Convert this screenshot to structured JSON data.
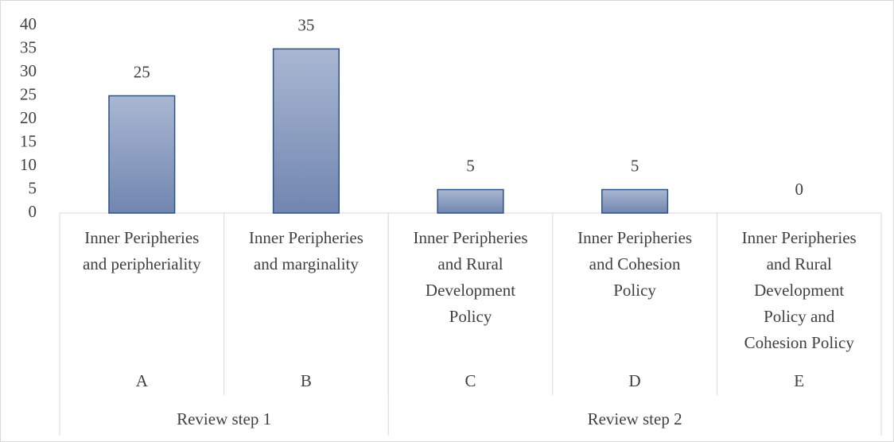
{
  "chart_data": {
    "type": "bar",
    "categories": [
      [
        "Inner Peripheries",
        "and peripheriality"
      ],
      [
        "Inner Peripheries",
        "and marginality"
      ],
      [
        "Inner Peripheries",
        "and Rural",
        "Development",
        "Policy"
      ],
      [
        "Inner Peripheries",
        "and Cohesion",
        "Policy"
      ],
      [
        "Inner Peripheries",
        "and Rural",
        "Development",
        "Policy and",
        "Cohesion Policy"
      ]
    ],
    "subcategories": [
      "A",
      "B",
      "C",
      "D",
      "E"
    ],
    "groups": [
      {
        "name": "Review step 1",
        "count": 2
      },
      {
        "name": "Review step 2",
        "count": 3
      }
    ],
    "values": [
      25,
      35,
      5,
      5,
      0
    ],
    "color": "#8b9cc0",
    "ylim": [
      0,
      40
    ],
    "yticks": [
      0,
      5,
      10,
      15,
      20,
      25,
      30,
      35,
      40
    ]
  }
}
